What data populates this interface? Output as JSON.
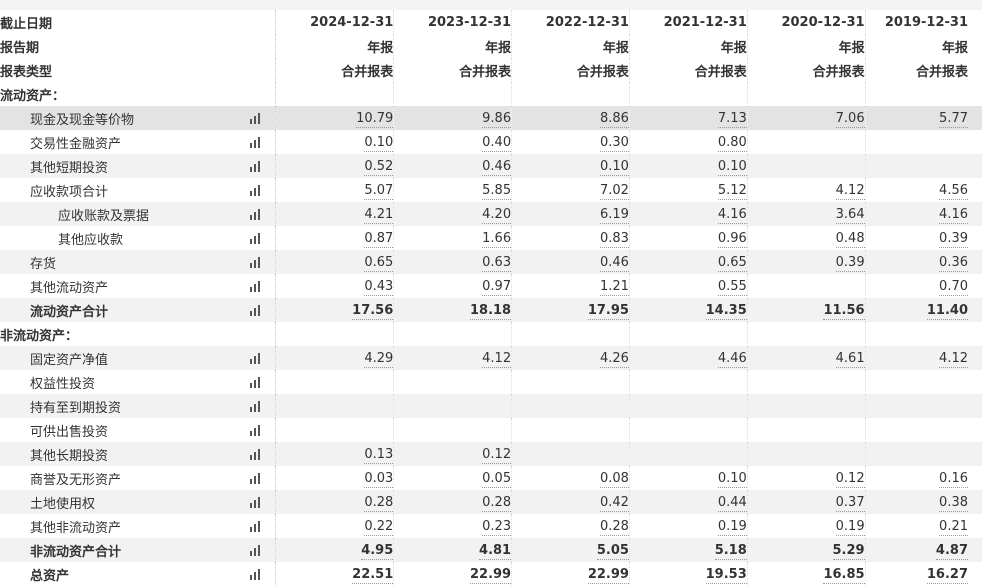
{
  "header": {
    "date_label": "截止日期",
    "period_label": "报告期",
    "type_label": "报表类型",
    "dates": [
      "2024-12-31",
      "2023-12-31",
      "2022-12-31",
      "2021-12-31",
      "2020-12-31",
      "2019-12-31"
    ],
    "periods": [
      "年报",
      "年报",
      "年报",
      "年报",
      "年报",
      "年报"
    ],
    "types": [
      "合并报表",
      "合并报表",
      "合并报表",
      "合并报表",
      "合并报表",
      "合并报表"
    ]
  },
  "rows": [
    {
      "label": "流动资产：",
      "section": true
    },
    {
      "label": "现金及现金等价物",
      "v": [
        "10.79",
        "9.86",
        "8.86",
        "7.13",
        "7.06",
        "5.77"
      ]
    },
    {
      "label": "交易性金融资产",
      "v": [
        "0.10",
        "0.40",
        "0.30",
        "0.80",
        "",
        ""
      ]
    },
    {
      "label": "其他短期投资",
      "v": [
        "0.52",
        "0.46",
        "0.10",
        "0.10",
        "",
        ""
      ]
    },
    {
      "label": "应收款项合计",
      "v": [
        "5.07",
        "5.85",
        "7.02",
        "5.12",
        "4.12",
        "4.56"
      ]
    },
    {
      "label": "应收账款及票据",
      "v": [
        "4.21",
        "4.20",
        "6.19",
        "4.16",
        "3.64",
        "4.16"
      ]
    },
    {
      "label": "其他应收款",
      "v": [
        "0.87",
        "1.66",
        "0.83",
        "0.96",
        "0.48",
        "0.39"
      ]
    },
    {
      "label": "存货",
      "v": [
        "0.65",
        "0.63",
        "0.46",
        "0.65",
        "0.39",
        "0.36"
      ]
    },
    {
      "label": "其他流动资产",
      "v": [
        "0.43",
        "0.97",
        "1.21",
        "0.55",
        "",
        "0.70"
      ]
    },
    {
      "label": "流动资产合计",
      "v": [
        "17.56",
        "18.18",
        "17.95",
        "14.35",
        "11.56",
        "11.40"
      ]
    },
    {
      "label": "非流动资产：",
      "section": true
    },
    {
      "label": "固定资产净值",
      "v": [
        "4.29",
        "4.12",
        "4.26",
        "4.46",
        "4.61",
        "4.12"
      ]
    },
    {
      "label": "权益性投资",
      "v": [
        "",
        "",
        "",
        "",
        "",
        ""
      ]
    },
    {
      "label": "持有至到期投资",
      "v": [
        "",
        "",
        "",
        "",
        "",
        ""
      ]
    },
    {
      "label": "可供出售投资",
      "v": [
        "",
        "",
        "",
        "",
        "",
        ""
      ]
    },
    {
      "label": "其他长期投资",
      "v": [
        "0.13",
        "0.12",
        "",
        "",
        "",
        ""
      ]
    },
    {
      "label": "商誉及无形资产",
      "v": [
        "0.03",
        "0.05",
        "0.08",
        "0.10",
        "0.12",
        "0.16"
      ]
    },
    {
      "label": "土地使用权",
      "v": [
        "0.28",
        "0.28",
        "0.42",
        "0.44",
        "0.37",
        "0.38"
      ]
    },
    {
      "label": "其他非流动资产",
      "v": [
        "0.22",
        "0.23",
        "0.28",
        "0.19",
        "0.19",
        "0.21"
      ]
    },
    {
      "label": "非流动资产合计",
      "v": [
        "4.95",
        "4.81",
        "5.05",
        "5.18",
        "5.29",
        "4.87"
      ]
    },
    {
      "label": "总资产",
      "v": [
        "22.51",
        "22.99",
        "22.99",
        "19.53",
        "16.85",
        "16.27"
      ]
    }
  ],
  "icons": {
    "chart": "bar-chart-icon"
  }
}
